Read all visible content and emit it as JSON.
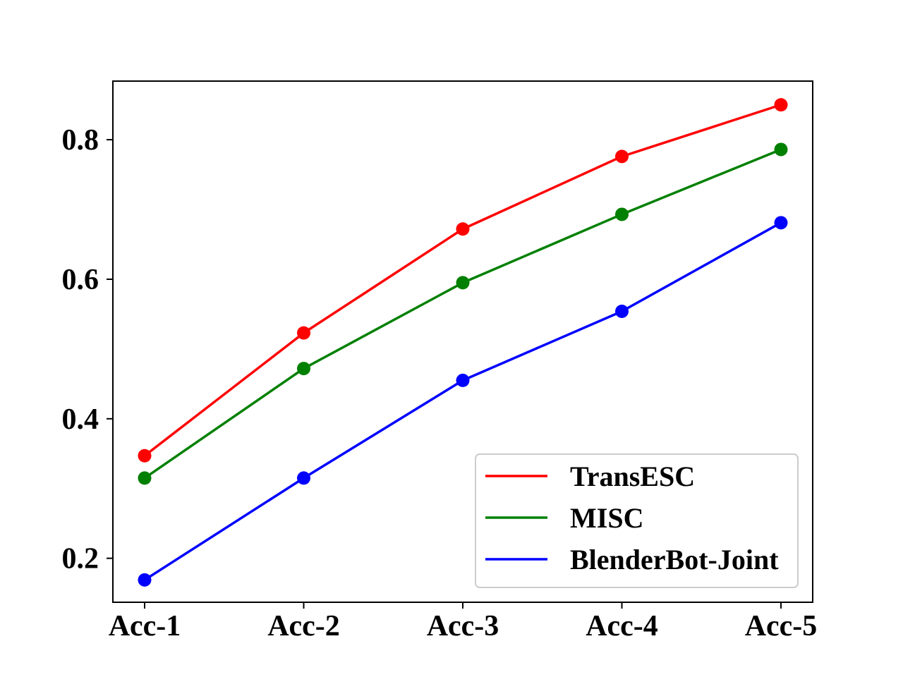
{
  "chart_data": {
    "type": "line",
    "title": "",
    "xlabel": "",
    "ylabel": "",
    "categories": [
      "Acc-1",
      "Acc-2",
      "Acc-3",
      "Acc-4",
      "Acc-5"
    ],
    "yticks": [
      0.2,
      0.4,
      0.6,
      0.8
    ],
    "ytick_labels": [
      "0.2",
      "0.4",
      "0.6",
      "0.8"
    ],
    "ylim": [
      0.137,
      0.884
    ],
    "grid": false,
    "legend_position": "lower-right",
    "series": [
      {
        "name": "TransESC",
        "color": "#ff0000",
        "values": [
          0.347,
          0.523,
          0.672,
          0.776,
          0.85
        ]
      },
      {
        "name": "MISC",
        "color": "#008000",
        "values": [
          0.315,
          0.472,
          0.595,
          0.693,
          0.786
        ]
      },
      {
        "name": "BlenderBot-Joint",
        "color": "#0000ff",
        "values": [
          0.169,
          0.315,
          0.455,
          0.554,
          0.681
        ]
      }
    ]
  }
}
